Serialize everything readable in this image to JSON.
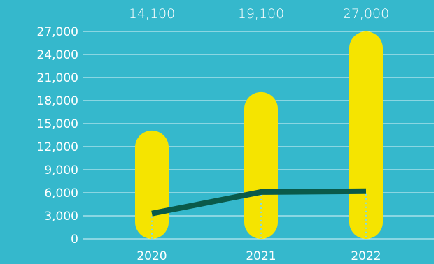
{
  "chart_data": {
    "type": "bar",
    "categories": [
      "2020",
      "2021",
      "2022"
    ],
    "series": [
      {
        "type": "bar",
        "values": [
          14100,
          19100,
          27000
        ],
        "color": "#f5e400"
      },
      {
        "type": "line",
        "values": [
          3300,
          6100,
          6200
        ],
        "color": "#0a5a4a"
      }
    ],
    "data_labels": [
      "14,100",
      "19,100",
      "27,000"
    ],
    "y_ticks": [
      0,
      3000,
      6000,
      9000,
      12000,
      15000,
      18000,
      21000,
      24000,
      27000
    ],
    "y_tick_labels": [
      "0",
      "3,000",
      "6,000",
      "9,000",
      "12,000",
      "15,000",
      "18,000",
      "21,000",
      "24,000",
      "27,000"
    ],
    "ylim": [
      0,
      27000
    ],
    "grid": true,
    "legend": "none",
    "title": "",
    "xlabel": "",
    "ylabel": "",
    "colors": {
      "background": "#35b8cc",
      "grid": "#dff4f7",
      "text": "#ffffff",
      "drop_line": "#7fd9ea"
    }
  }
}
